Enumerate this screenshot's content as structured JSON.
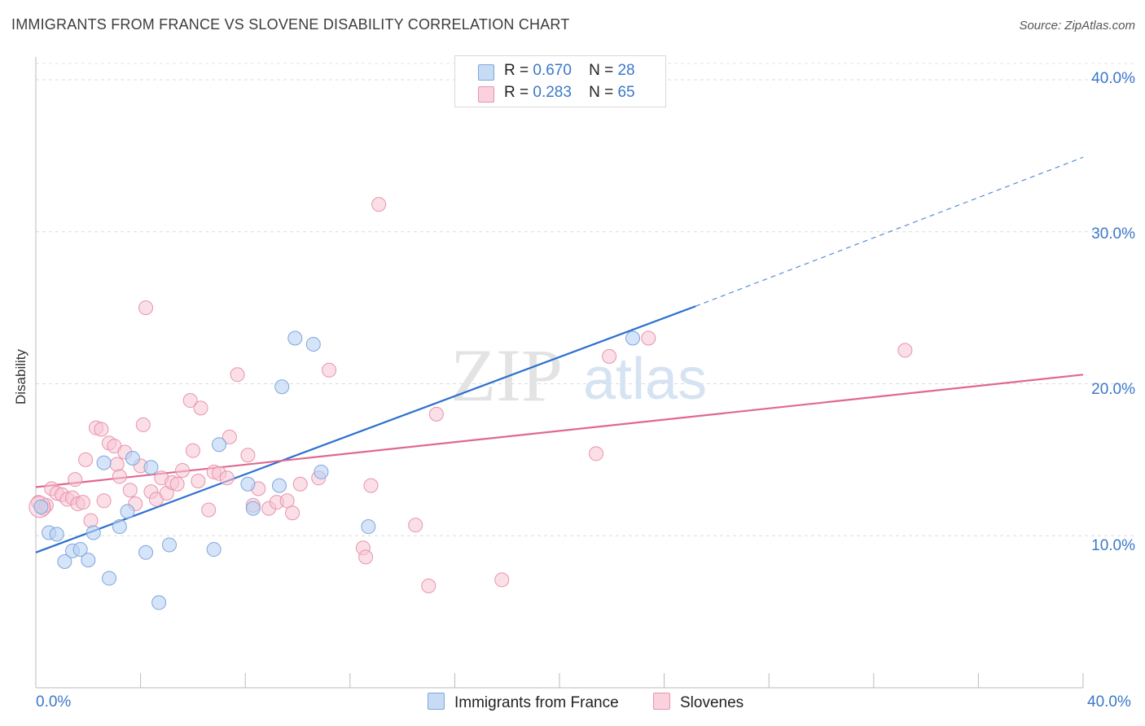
{
  "title": "IMMIGRANTS FROM FRANCE VS SLOVENE DISABILITY CORRELATION CHART",
  "source": "Source: ZipAtlas.com",
  "watermark": {
    "zip": "ZIP",
    "atlas": "atlas"
  },
  "legend": {
    "r_label": "R =",
    "n_label": "N =",
    "items": [
      {
        "r": "0.670",
        "n": "28"
      },
      {
        "r": "0.283",
        "n": "65"
      }
    ]
  },
  "colors": {
    "blue_fill": "#b9d2f3",
    "blue_stroke": "#7da7dc",
    "blue_line": "#2d6fcf",
    "pink_fill": "#f7c5d4",
    "pink_stroke": "#e893ae",
    "pink_line": "#e0688f",
    "tick_text": "#3b78c8"
  },
  "chart_data": {
    "type": "scatter",
    "title": "IMMIGRANTS FROM FRANCE VS SLOVENE DISABILITY CORRELATION CHART",
    "xlabel": "",
    "ylabel": "Disability",
    "xlim": [
      0,
      40
    ],
    "ylim": [
      0,
      41.5
    ],
    "x_tick_labels": [
      "0.0%",
      "40.0%"
    ],
    "y_ticks": [
      10,
      20,
      30,
      40
    ],
    "y_tick_labels": [
      "10.0%",
      "20.0%",
      "30.0%",
      "40.0%"
    ],
    "grid": true,
    "legend_position": "top-center",
    "series": [
      {
        "name": "Immigrants from France",
        "color": "#b9d2f3",
        "trend": {
          "x0": 0,
          "y0": 8.9,
          "x1": 25.2,
          "y1": 25.1,
          "dash_to_x": 40,
          "dash_to_y": 34.9
        },
        "points": [
          [
            0.2,
            11.9
          ],
          [
            0.5,
            10.2
          ],
          [
            0.8,
            10.1
          ],
          [
            1.1,
            8.3
          ],
          [
            1.4,
            9.0
          ],
          [
            1.7,
            9.1
          ],
          [
            2.0,
            8.4
          ],
          [
            2.2,
            10.2
          ],
          [
            2.6,
            14.8
          ],
          [
            2.8,
            7.2
          ],
          [
            3.2,
            10.6
          ],
          [
            3.5,
            11.6
          ],
          [
            3.7,
            15.1
          ],
          [
            4.2,
            8.9
          ],
          [
            4.4,
            14.5
          ],
          [
            4.7,
            5.6
          ],
          [
            5.1,
            9.4
          ],
          [
            6.8,
            9.1
          ],
          [
            7.0,
            16.0
          ],
          [
            8.1,
            13.4
          ],
          [
            8.3,
            11.8
          ],
          [
            9.3,
            13.3
          ],
          [
            9.4,
            19.8
          ],
          [
            9.9,
            23.0
          ],
          [
            10.6,
            22.6
          ],
          [
            10.9,
            14.2
          ],
          [
            12.7,
            10.6
          ],
          [
            22.8,
            23.0
          ]
        ]
      },
      {
        "name": "Slovenes",
        "color": "#f7c5d4",
        "trend": {
          "x0": 0,
          "y0": 13.2,
          "x1": 40,
          "y1": 20.6
        },
        "points": [
          [
            0.1,
            12.2
          ],
          [
            0.3,
            11.8
          ],
          [
            0.4,
            12.0
          ],
          [
            0.6,
            13.1
          ],
          [
            0.8,
            12.8
          ],
          [
            1.0,
            12.7
          ],
          [
            1.2,
            12.4
          ],
          [
            1.4,
            12.5
          ],
          [
            1.5,
            13.7
          ],
          [
            1.6,
            12.1
          ],
          [
            1.8,
            12.2
          ],
          [
            1.9,
            15.0
          ],
          [
            2.1,
            11.0
          ],
          [
            2.3,
            17.1
          ],
          [
            2.5,
            17.0
          ],
          [
            2.6,
            12.3
          ],
          [
            2.8,
            16.1
          ],
          [
            3.0,
            15.9
          ],
          [
            3.1,
            14.7
          ],
          [
            3.2,
            13.9
          ],
          [
            3.4,
            15.5
          ],
          [
            3.6,
            13.0
          ],
          [
            3.8,
            12.1
          ],
          [
            4.0,
            14.6
          ],
          [
            4.1,
            17.3
          ],
          [
            4.2,
            25.0
          ],
          [
            4.4,
            12.9
          ],
          [
            4.6,
            12.4
          ],
          [
            4.8,
            13.8
          ],
          [
            5.0,
            12.8
          ],
          [
            5.2,
            13.5
          ],
          [
            5.4,
            13.4
          ],
          [
            5.6,
            14.3
          ],
          [
            5.9,
            18.9
          ],
          [
            6.0,
            15.6
          ],
          [
            6.2,
            13.6
          ],
          [
            6.3,
            18.4
          ],
          [
            6.6,
            11.7
          ],
          [
            6.8,
            14.2
          ],
          [
            7.0,
            14.1
          ],
          [
            7.3,
            13.8
          ],
          [
            7.4,
            16.5
          ],
          [
            7.7,
            20.6
          ],
          [
            8.1,
            15.3
          ],
          [
            8.3,
            12.0
          ],
          [
            8.5,
            13.1
          ],
          [
            8.9,
            11.8
          ],
          [
            9.2,
            12.2
          ],
          [
            9.6,
            12.3
          ],
          [
            9.8,
            11.5
          ],
          [
            10.1,
            13.4
          ],
          [
            10.8,
            13.8
          ],
          [
            11.2,
            20.9
          ],
          [
            12.5,
            9.2
          ],
          [
            12.6,
            8.6
          ],
          [
            12.8,
            13.3
          ],
          [
            13.1,
            31.8
          ],
          [
            14.5,
            10.7
          ],
          [
            15.0,
            6.7
          ],
          [
            15.3,
            18.0
          ],
          [
            17.8,
            7.1
          ],
          [
            21.4,
            15.4
          ],
          [
            21.9,
            21.8
          ],
          [
            23.4,
            23.0
          ],
          [
            33.2,
            22.2
          ]
        ]
      }
    ]
  }
}
